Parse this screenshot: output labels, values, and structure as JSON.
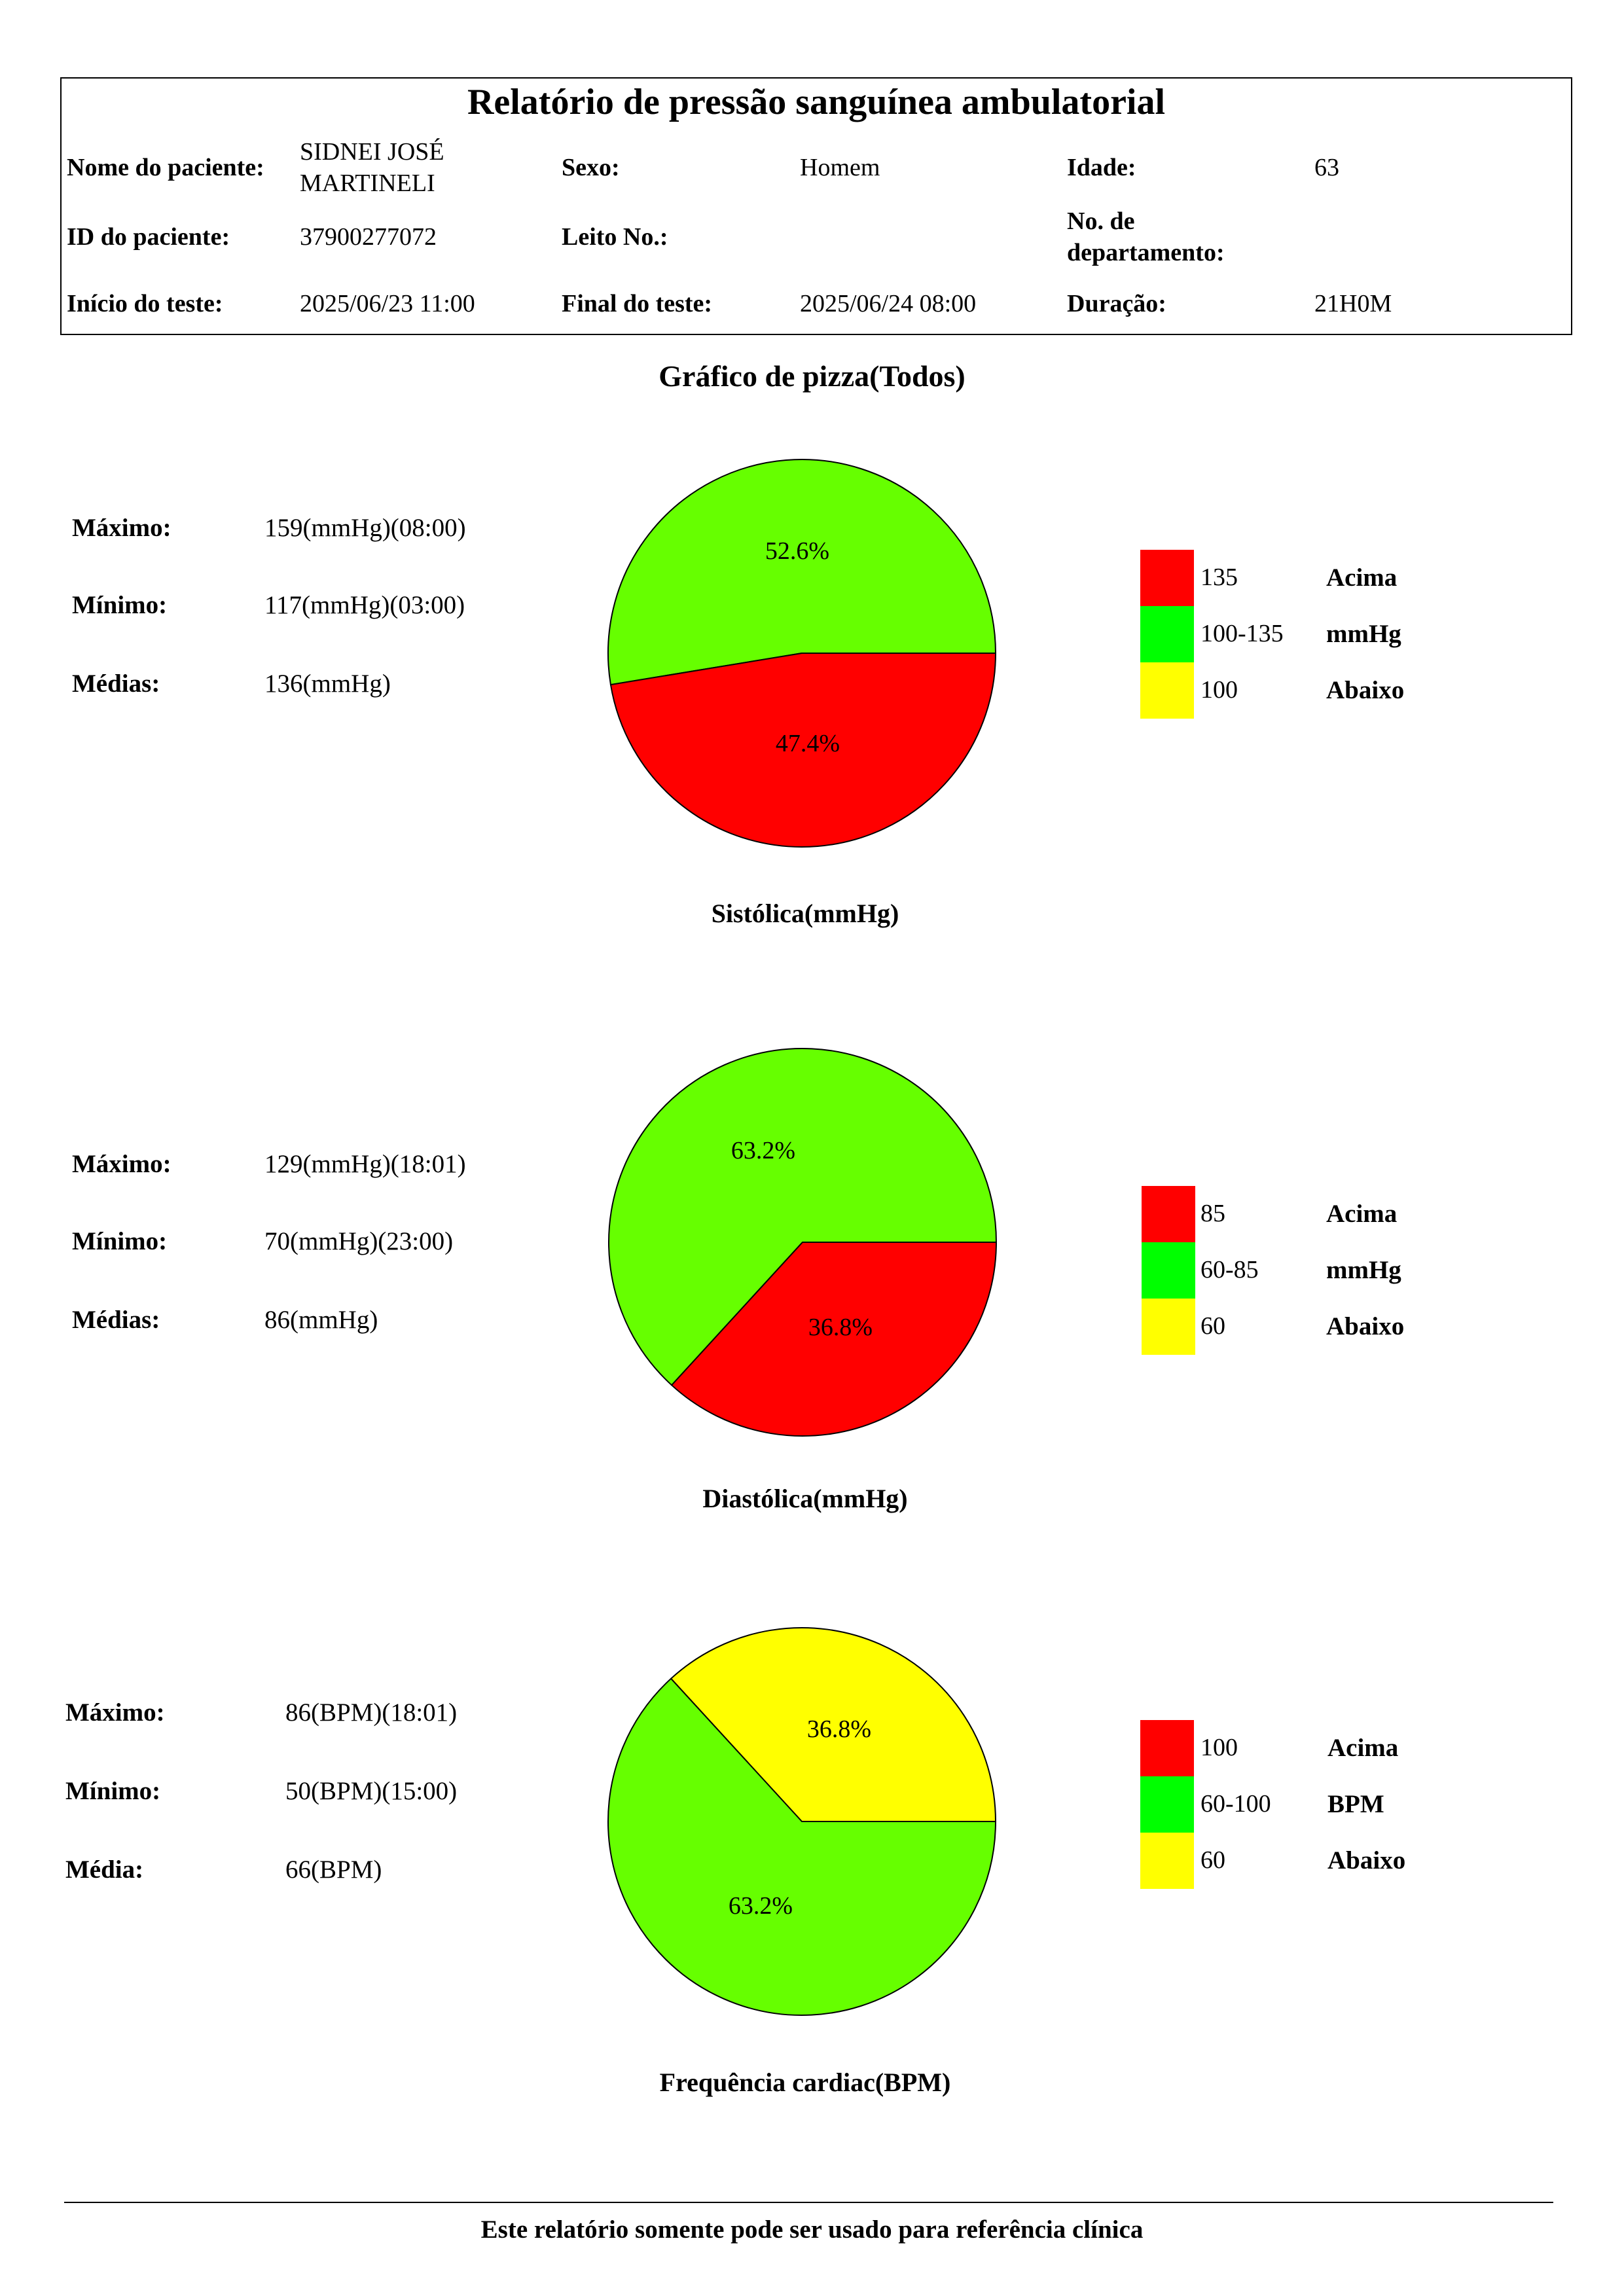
{
  "header": {
    "title": "Relatório de pressão sanguínea ambulatorial",
    "patient_name_label": "Nome do paciente:",
    "patient_name_line1": "SIDNEI JOSÉ",
    "patient_name_line2": "MARTINELI",
    "sex_label": "Sexo:",
    "sex_value": "Homem",
    "age_label": "Idade:",
    "age_value": "63",
    "patient_id_label": "ID do paciente:",
    "patient_id_value": "37900277072",
    "bed_label": "Leito No.:",
    "bed_value": "",
    "dept_label_line1": "No. de",
    "dept_label_line2": "departamento:",
    "dept_value": "",
    "start_label": "Início do teste:",
    "start_value": "2025/06/23 11:00",
    "end_label": "Final do teste:",
    "end_value": "2025/06/24 08:00",
    "duration_label": "Duração:",
    "duration_value": "21H0M"
  },
  "section_title": "Gráfico de pizza(Todos)",
  "colors": {
    "above": "#ff0000",
    "normal": "#66ff00",
    "below": "#ffff00",
    "legend_normal": "#00ff00"
  },
  "charts": [
    {
      "stats": [
        {
          "label": "Máximo:",
          "value": "159(mmHg)(08:00)"
        },
        {
          "label": "Mínimo:",
          "value": "117(mmHg)(03:00)"
        },
        {
          "label": "Médias:",
          "value": "136(mmHg)"
        }
      ],
      "legend": [
        {
          "range": "135",
          "label": "Acima"
        },
        {
          "range": "100-135",
          "label": "mmHg"
        },
        {
          "range": "100",
          "label": "Abaixo"
        }
      ],
      "caption": "Sistólica(mmHg)",
      "slice_labels": [
        "52.6%",
        "47.4%"
      ]
    },
    {
      "stats": [
        {
          "label": "Máximo:",
          "value": "129(mmHg)(18:01)"
        },
        {
          "label": "Mínimo:",
          "value": "70(mmHg)(23:00)"
        },
        {
          "label": "Médias:",
          "value": "86(mmHg)"
        }
      ],
      "legend": [
        {
          "range": "85",
          "label": "Acima"
        },
        {
          "range": "60-85",
          "label": "mmHg"
        },
        {
          "range": "60",
          "label": "Abaixo"
        }
      ],
      "caption": "Diastólica(mmHg)",
      "slice_labels": [
        "63.2%",
        "36.8%"
      ]
    },
    {
      "stats": [
        {
          "label": "Máximo:",
          "value": "86(BPM)(18:01)"
        },
        {
          "label": "Mínimo:",
          "value": "50(BPM)(15:00)"
        },
        {
          "label": "Média:",
          "value": "66(BPM)"
        }
      ],
      "legend": [
        {
          "range": "100",
          "label": "Acima"
        },
        {
          "range": "60-100",
          "label": "BPM"
        },
        {
          "range": "60",
          "label": "Abaixo"
        }
      ],
      "caption": "Frequência cardiac(BPM)",
      "slice_labels": [
        "36.8%",
        "63.2%"
      ]
    }
  ],
  "chart_data": [
    {
      "type": "pie",
      "title": "Sistólica(mmHg)",
      "labels": [
        "100-135",
        "135"
      ],
      "values": [
        52.6,
        47.4
      ],
      "colors": [
        "#66ff00",
        "#ff0000"
      ]
    },
    {
      "type": "pie",
      "title": "Diastólica(mmHg)",
      "labels": [
        "60-85",
        "85"
      ],
      "values": [
        63.2,
        36.8
      ],
      "colors": [
        "#66ff00",
        "#ff0000"
      ]
    },
    {
      "type": "pie",
      "title": "Frequência cardiac(BPM)",
      "labels": [
        "60",
        "60-100"
      ],
      "values": [
        36.8,
        63.2
      ],
      "colors": [
        "#ffff00",
        "#66ff00"
      ]
    }
  ],
  "footer": {
    "note": "Este relatório somente pode ser usado para referência clínica"
  }
}
